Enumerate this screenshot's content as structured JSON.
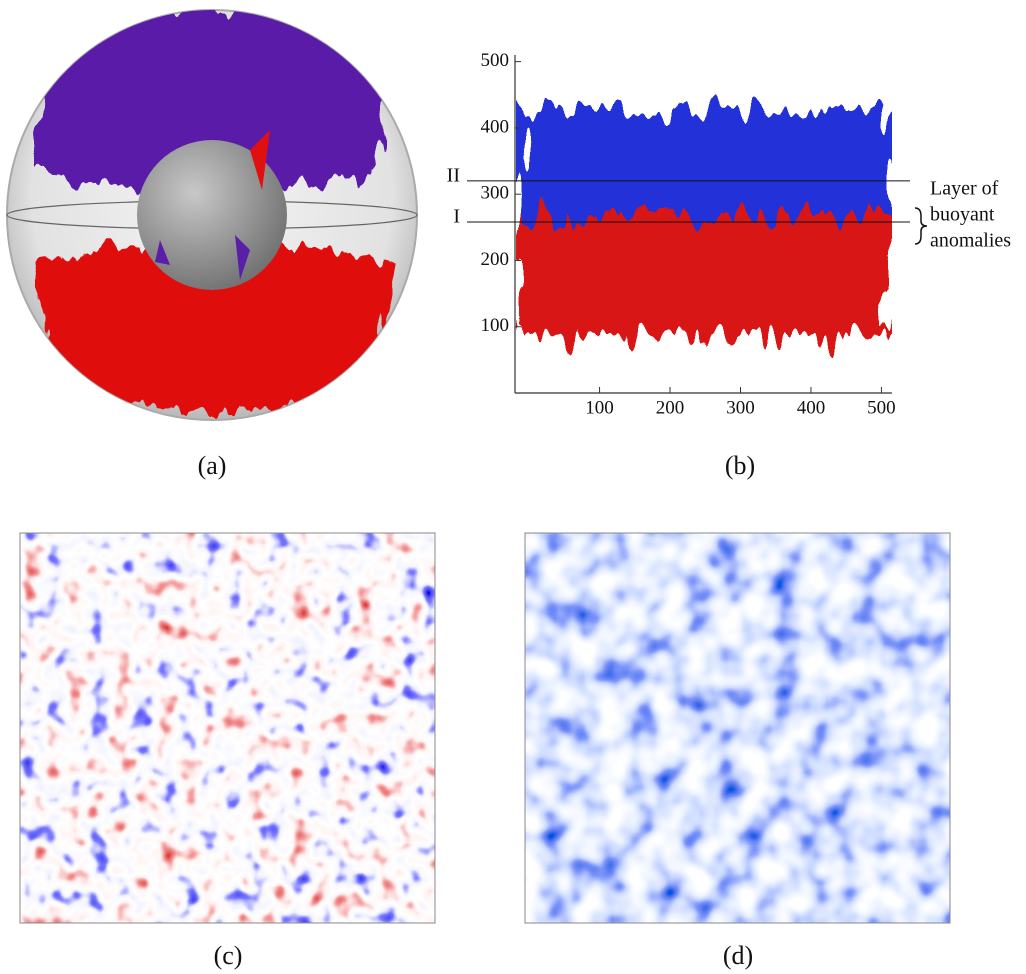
{
  "panels": [
    {
      "label": "(a)"
    },
    {
      "label": "(b)",
      "plot": {
        "xlim": [
          -20,
          515
        ],
        "ylim": [
          0,
          510
        ],
        "xticks": [
          100,
          200,
          300,
          400,
          500
        ],
        "yticks": [
          100,
          200,
          300,
          400,
          500
        ],
        "levels": [
          {
            "label": "II",
            "value": 320
          },
          {
            "label": "I",
            "value": 258
          }
        ],
        "annotation": [
          "Layer of",
          "buoyant",
          "anomalies"
        ]
      }
    },
    {
      "label": "(c)"
    },
    {
      "label": "(d)"
    }
  ]
}
